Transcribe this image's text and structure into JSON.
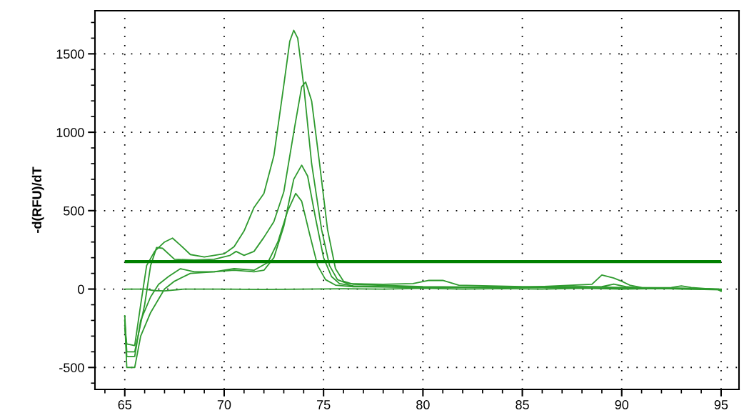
{
  "chart_data": {
    "type": "line",
    "ylabel": "-d(RFU)/dT",
    "xlim": [
      63.5,
      95.9
    ],
    "ylim": [
      -640,
      1775
    ],
    "xticks": [
      65,
      70,
      75,
      80,
      85,
      90,
      95
    ],
    "yticks": [
      -500,
      0,
      500,
      1000,
      1500
    ],
    "grid": true,
    "legend": false,
    "marker": "none",
    "line_style": "solid",
    "ref_lines": [
      {
        "axis": "y",
        "value": 175,
        "color": "#008000"
      }
    ],
    "series": [
      {
        "color": "#2e9a2e",
        "x": [
          65,
          65.1,
          65.5,
          65.8,
          66.1,
          66.5,
          67.0,
          67.4,
          67.8,
          68.3,
          69.0,
          70.0,
          70.5,
          71.0,
          71.5,
          72.0,
          72.5,
          73.0,
          73.3,
          73.5,
          73.7,
          74.0,
          74.4,
          74.9,
          75.3,
          75.7,
          76.2,
          78,
          79.5,
          80.3,
          81,
          81.8,
          85,
          88,
          90,
          93,
          94.8,
          95
        ],
        "values": [
          -250,
          -350,
          -360,
          -100,
          150,
          240,
          300,
          325,
          280,
          220,
          205,
          225,
          270,
          370,
          520,
          610,
          850,
          1300,
          1580,
          1650,
          1600,
          1300,
          800,
          380,
          150,
          60,
          35,
          30,
          35,
          55,
          55,
          25,
          15,
          15,
          10,
          5,
          0,
          -10
        ]
      },
      {
        "color": "#2e9a2e",
        "x": [
          65,
          65.1,
          65.5,
          66.0,
          66.3,
          66.6,
          66.9,
          67.5,
          68.5,
          69.5,
          70.3,
          70.6,
          71.0,
          71.5,
          72.0,
          72.5,
          73.0,
          73.5,
          73.9,
          74.1,
          74.4,
          74.8,
          75.2,
          75.6,
          76.0,
          76.5,
          80,
          85,
          88.5,
          89.0,
          89.6,
          90.0,
          90.4,
          91,
          94.8,
          95
        ],
        "values": [
          -170,
          -400,
          -400,
          -100,
          150,
          265,
          260,
          190,
          185,
          190,
          215,
          240,
          215,
          240,
          330,
          430,
          620,
          1000,
          1290,
          1320,
          1200,
          800,
          380,
          130,
          50,
          30,
          15,
          10,
          30,
          90,
          70,
          50,
          25,
          10,
          0,
          -15
        ]
      },
      {
        "color": "#2e9a2e",
        "x": [
          65,
          65.1,
          65.5,
          65.8,
          66.3,
          66.7,
          67.2,
          67.8,
          68.5,
          69.5,
          70.5,
          71.5,
          72.0,
          72.5,
          73.0,
          73.5,
          73.9,
          74.2,
          74.6,
          75.0,
          75.4,
          75.8,
          76.5,
          80,
          85,
          89.0,
          89.6,
          90.2,
          91,
          95
        ],
        "values": [
          -200,
          -430,
          -430,
          -200,
          -50,
          30,
          80,
          130,
          110,
          110,
          120,
          110,
          120,
          200,
          400,
          700,
          790,
          720,
          450,
          200,
          80,
          35,
          20,
          10,
          10,
          15,
          32,
          15,
          5,
          -5
        ]
      },
      {
        "color": "#2e9a2e",
        "x": [
          65,
          65.1,
          65.5,
          65.8,
          66.3,
          67.0,
          67.5,
          68.3,
          69.5,
          70.5,
          71.5,
          72.2,
          72.7,
          73.2,
          73.6,
          73.9,
          74.3,
          74.7,
          75.1,
          75.6,
          76.5,
          80,
          85,
          90,
          92.5,
          93.0,
          93.5,
          95
        ],
        "values": [
          -200,
          -500,
          -500,
          -300,
          -150,
          0,
          50,
          100,
          110,
          130,
          120,
          170,
          300,
          500,
          610,
          560,
          350,
          150,
          60,
          25,
          15,
          10,
          10,
          5,
          10,
          20,
          10,
          -5
        ]
      },
      {
        "color": "#2e9a2e",
        "x": [
          65,
          66,
          66.5,
          67,
          68,
          70,
          72,
          74,
          76,
          78,
          80,
          82,
          84,
          86,
          88,
          90,
          92,
          94,
          95
        ],
        "values": [
          0,
          0,
          -10,
          -12,
          0,
          0,
          -3,
          0,
          2,
          0,
          5,
          0,
          3,
          0,
          5,
          0,
          3,
          0,
          0
        ]
      }
    ]
  }
}
